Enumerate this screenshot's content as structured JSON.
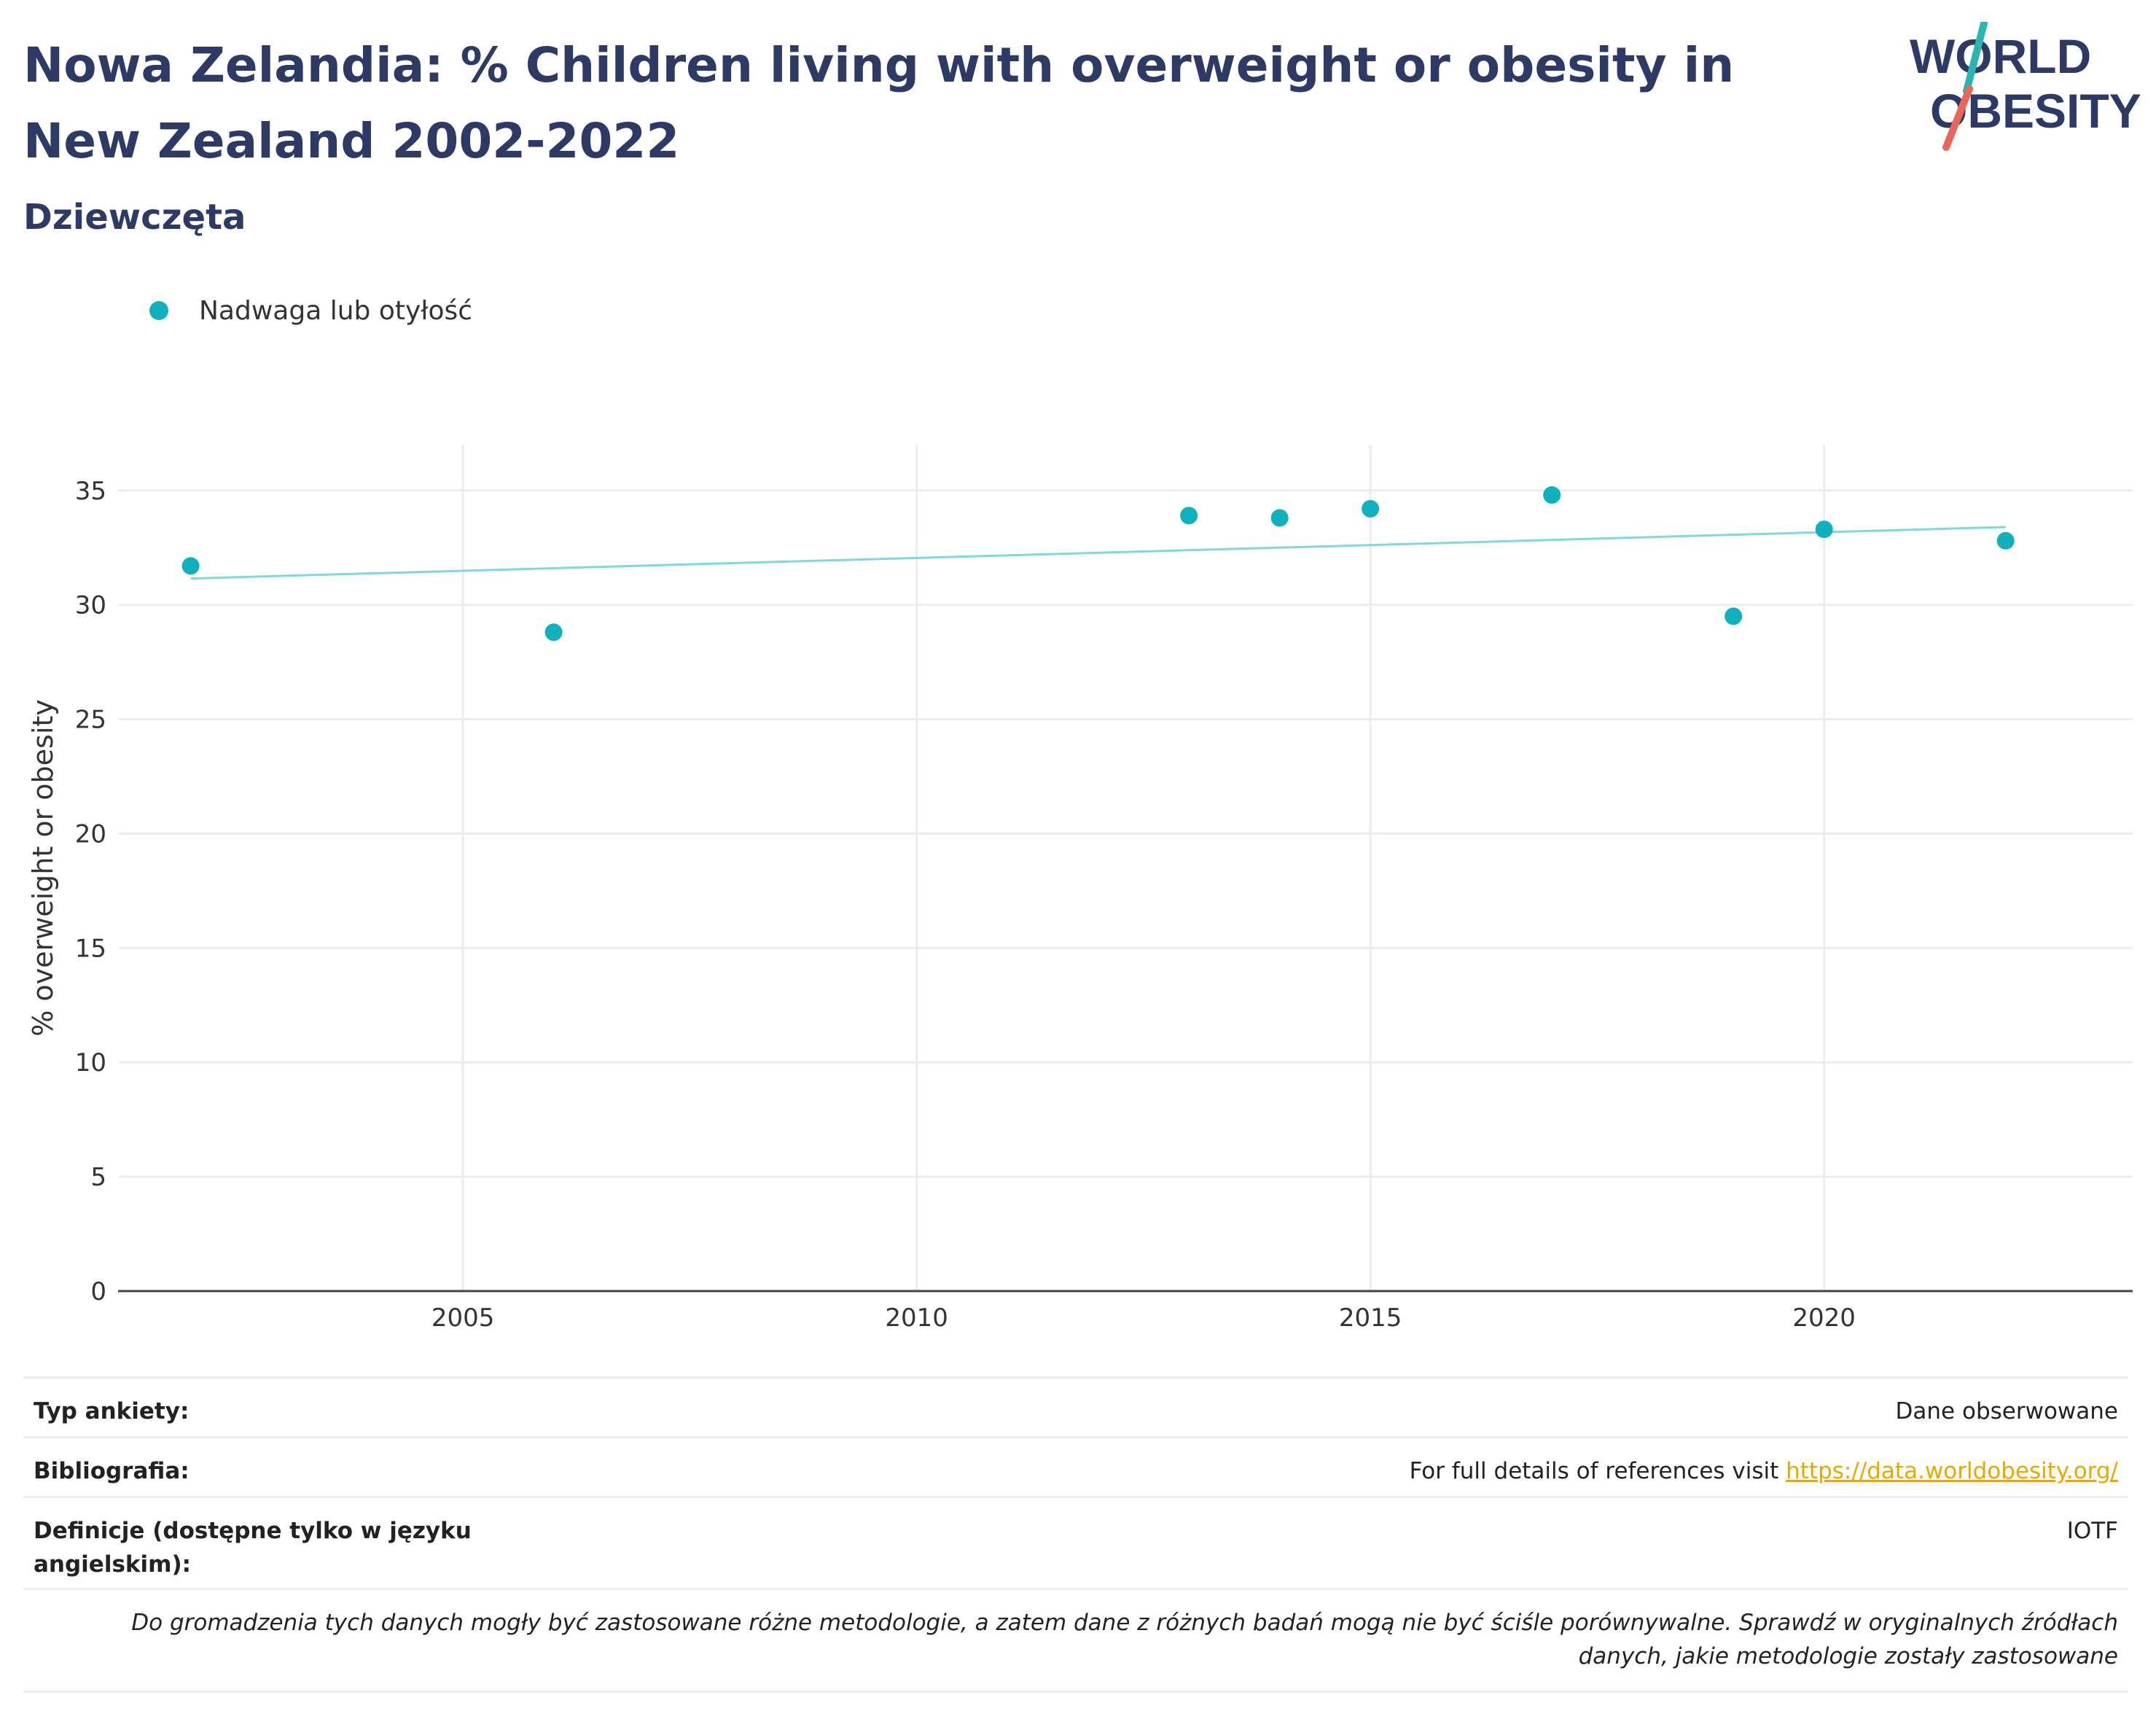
{
  "header": {
    "title": "Nowa Zelandia: % Children living with overweight or obesity in New Zealand 2002-2022",
    "subtitle": "Dziewczęta"
  },
  "logo": {
    "line1": "WORLD",
    "line2": "OBESITY",
    "icon": "world-obesity-logo"
  },
  "colors": {
    "accent": "#10b0bf",
    "trend": "#7fd8dc",
    "title": "#2d3a66",
    "link": "#e8a800",
    "logo_teal": "#2bb5b0",
    "logo_red": "#e8675a"
  },
  "chart_data": {
    "type": "scatter",
    "title": "Nowa Zelandia: % Children living with overweight or obesity in New Zealand 2002-2022",
    "subtitle": "Dziewczęta",
    "ylabel": "% overweight or obesity",
    "xlabel": "",
    "xlim": [
      2001.2,
      2023.4
    ],
    "ylim": [
      0,
      37
    ],
    "xticks": [
      2005,
      2010,
      2015,
      2020
    ],
    "yticks": [
      0,
      5,
      10,
      15,
      20,
      25,
      30,
      35
    ],
    "grid": true,
    "legend_position": "top-left",
    "series": [
      {
        "name": "Nadwaga lub otyłość",
        "x": [
          2002,
          2006,
          2013,
          2014,
          2015,
          2017,
          2019,
          2020,
          2022
        ],
        "y": [
          31.7,
          28.8,
          33.9,
          33.8,
          34.2,
          34.8,
          29.5,
          33.3,
          32.8
        ]
      }
    ],
    "trendline": {
      "x": [
        2002,
        2022
      ],
      "y": [
        31.15,
        33.4
      ]
    }
  },
  "info": {
    "survey_type_label": "Typ ankiety:",
    "survey_type_value": "Dane obserwowane",
    "bibliography_label": "Bibliografia:",
    "bibliography_text": "For full details of references visit ",
    "bibliography_link": "https://data.worldobesity.org/",
    "definitions_label": "Definicje (dostępne tylko w języku angielskim):",
    "definitions_value": "IOTF",
    "note_line1": "Do gromadzenia tych danych mogły być zastosowane różne metodologie, a zatem dane z różnych badań mogą nie być ściśle porównywalne. Sprawdź w oryginalnych źródłach",
    "note_line2": "danych, jakie metodologie zostały zastosowane"
  }
}
